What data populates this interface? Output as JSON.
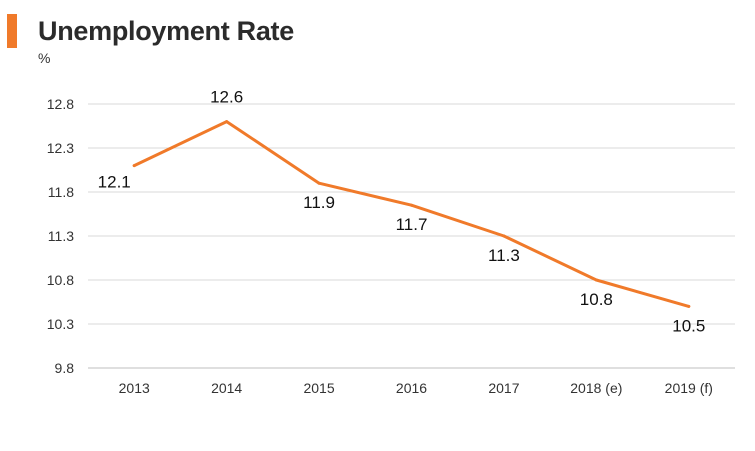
{
  "chart_data": {
    "type": "line",
    "title": "Unemployment Rate",
    "ylabel": "%",
    "xlabel": "",
    "categories": [
      "2013",
      "2014",
      "2015",
      "2016",
      "2017",
      "2018 (e)",
      "2019 (f)"
    ],
    "series": [
      {
        "values": [
          12.1,
          12.6,
          11.9,
          11.65,
          11.3,
          10.8,
          10.5
        ],
        "labels": [
          "12.1",
          "12.6",
          "11.9",
          "11.7",
          "11.3",
          "10.8",
          "10.5"
        ]
      }
    ],
    "yticks": [
      "9.8",
      "10.3",
      "10.8",
      "11.3",
      "11.8",
      "12.3",
      "12.8"
    ],
    "ylim": [
      9.8,
      12.8
    ],
    "grid": true,
    "line_color": "#f07a2a",
    "accent_color": "#f07a2a"
  }
}
